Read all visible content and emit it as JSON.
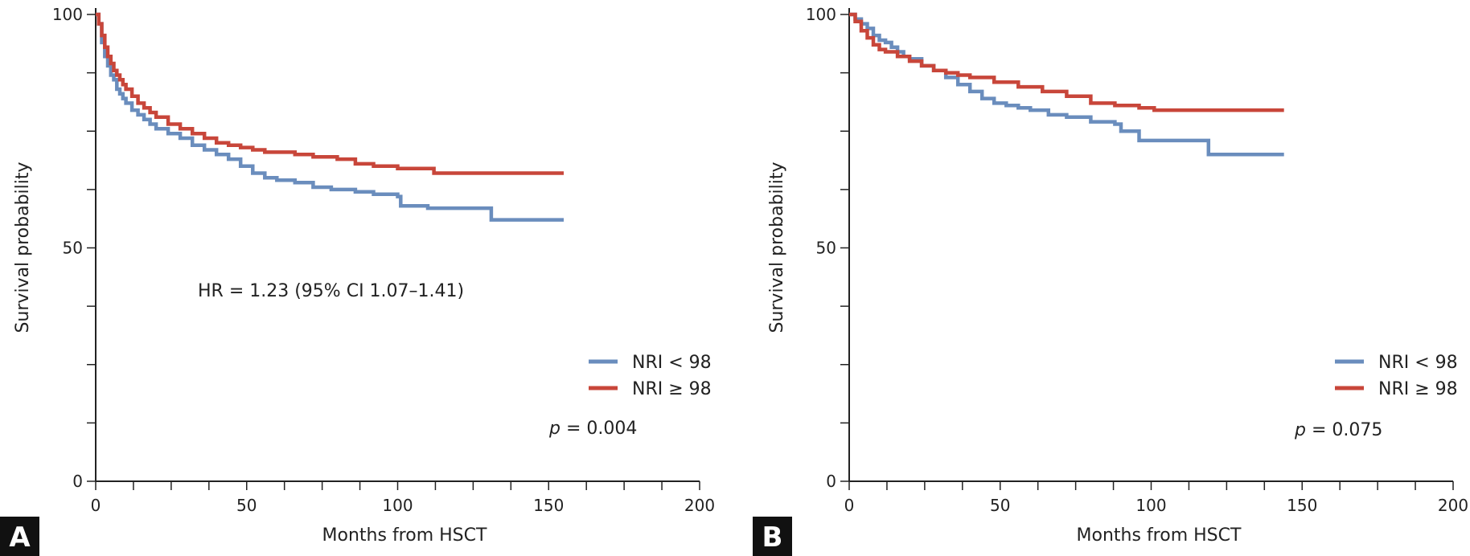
{
  "colors": {
    "blue": "#6a8dbd",
    "red": "#c8463a",
    "axis": "#222222",
    "panel_box": "#111111"
  },
  "chart_data": [
    {
      "panel_label": "A",
      "type": "line",
      "xlabel": "Months from HSCT",
      "ylabel": "Survival probability",
      "xlim": [
        0,
        200
      ],
      "ylim": [
        0,
        100
      ],
      "x_ticks": [
        0,
        50,
        100,
        150,
        200
      ],
      "x_minor_step": 12.5,
      "y_ticks": [
        0,
        50,
        100
      ],
      "y_minor_step": 12.5,
      "annotation": "HR = 1.23 (95% CI 1.07–1.41)",
      "p_label": "p",
      "p_text": " = 0.004",
      "legend": [
        "NRI < 98",
        "NRI ≥ 98"
      ],
      "series": [
        {
          "name": "NRI < 98",
          "color": "blue",
          "x": [
            0,
            1,
            2,
            3,
            4,
            5,
            6,
            7,
            8,
            9,
            10,
            12,
            14,
            16,
            18,
            20,
            24,
            28,
            32,
            36,
            40,
            44,
            48,
            52,
            56,
            60,
            66,
            72,
            78,
            86,
            92,
            100,
            101,
            110,
            120,
            131,
            140,
            155
          ],
          "y": [
            100,
            98,
            94,
            91,
            89,
            87,
            86,
            84,
            83,
            82,
            81,
            79.5,
            78.5,
            77.5,
            76.5,
            75.5,
            74.5,
            73.5,
            72,
            71,
            70,
            69,
            67.5,
            66,
            65,
            64.5,
            64,
            63,
            62.5,
            62,
            61.5,
            61,
            59,
            58.5,
            58.5,
            56,
            56,
            56
          ]
        },
        {
          "name": "NRI ≥ 98",
          "color": "red",
          "x": [
            0,
            1,
            2,
            3,
            4,
            5,
            6,
            7,
            8,
            9,
            10,
            12,
            14,
            16,
            18,
            20,
            24,
            28,
            32,
            36,
            40,
            44,
            48,
            52,
            56,
            60,
            66,
            72,
            80,
            86,
            92,
            100,
            112,
            120,
            155
          ],
          "y": [
            100,
            98,
            95.5,
            93,
            91,
            89.5,
            88,
            87,
            86,
            85,
            84,
            82.5,
            81,
            80,
            79,
            78,
            76.5,
            75.5,
            74.5,
            73.5,
            72.5,
            72,
            71.5,
            71,
            70.5,
            70.5,
            70,
            69.5,
            69,
            68,
            67.5,
            67,
            66,
            66,
            66
          ]
        }
      ]
    },
    {
      "panel_label": "B",
      "type": "line",
      "xlabel": "Months from HSCT",
      "ylabel": "Survival probability",
      "xlim": [
        0,
        200
      ],
      "ylim": [
        0,
        100
      ],
      "x_ticks": [
        0,
        50,
        100,
        150,
        200
      ],
      "x_minor_step": 12.5,
      "y_ticks": [
        0,
        50,
        100
      ],
      "y_minor_step": 12.5,
      "p_label": "p",
      "p_text": " = 0.075",
      "legend": [
        "NRI < 98",
        "NRI ≥ 98"
      ],
      "series": [
        {
          "name": "NRI < 98",
          "color": "blue",
          "x": [
            0,
            2,
            4,
            6,
            8,
            10,
            12,
            14,
            16,
            18,
            20,
            24,
            28,
            32,
            36,
            40,
            44,
            48,
            52,
            56,
            60,
            66,
            72,
            80,
            88,
            90,
            96,
            104,
            112,
            119,
            130,
            144
          ],
          "y": [
            100,
            99,
            98,
            97,
            95.5,
            94.5,
            94,
            93,
            92,
            91,
            90.5,
            89,
            88,
            86.5,
            85,
            83.5,
            82,
            81,
            80.5,
            80,
            79.5,
            78.5,
            78,
            77,
            76.5,
            75,
            73,
            73,
            73,
            70,
            70,
            70
          ]
        },
        {
          "name": "NRI ≥ 98",
          "color": "red",
          "x": [
            0,
            2,
            4,
            6,
            8,
            10,
            12,
            16,
            20,
            24,
            28,
            32,
            36,
            40,
            48,
            56,
            64,
            72,
            80,
            88,
            96,
            101,
            110,
            120,
            144
          ],
          "y": [
            100,
            98.5,
            96.5,
            95,
            93.5,
            92.5,
            92,
            91,
            90,
            89,
            88,
            87.5,
            87,
            86.5,
            85.5,
            84.5,
            83.5,
            82.5,
            81,
            80.5,
            80,
            79.5,
            79.5,
            79.5,
            79.5
          ]
        }
      ]
    }
  ]
}
